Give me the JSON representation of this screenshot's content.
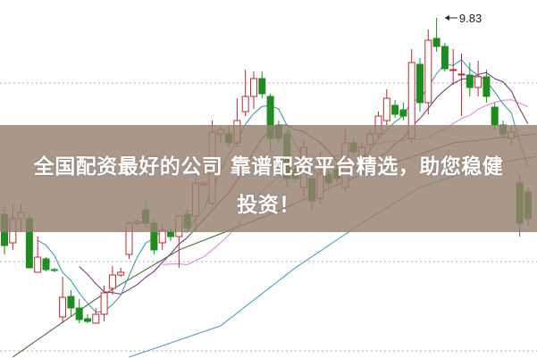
{
  "chart_data": {
    "type": "candlestick",
    "title": "",
    "annotations": [
      {
        "label": "9.83",
        "candle": 53,
        "price": 9.83
      }
    ],
    "gridlines": [
      9.1,
      7.1,
      6.1
    ],
    "grid": "horizontal dotted",
    "colors": {
      "up": "#c0282c",
      "down": "#1e8c1e",
      "ma5": "#3aa0a8",
      "ma10": "#7a3a7a",
      "ma20": "#e088e0",
      "ma60": "#4e6e3e",
      "ma120": "#4aa0c0",
      "grid": "#aaaaaa"
    },
    "candles": [
      [
        7.63,
        7.28,
        7.71,
        7.18
      ],
      [
        7.31,
        7.58,
        7.75,
        7.23
      ],
      [
        7.58,
        7.65,
        7.75,
        7.43
      ],
      [
        7.58,
        7.03,
        7.63,
        7.03
      ],
      [
        6.98,
        7.15,
        7.38,
        6.98
      ],
      [
        7.13,
        7.01,
        7.15,
        6.99
      ],
      [
        7.01,
        7.0,
        7.03,
        6.98
      ],
      [
        6.48,
        6.7,
        6.93,
        6.41
      ],
      [
        6.71,
        6.58,
        6.78,
        6.48
      ],
      [
        6.58,
        6.45,
        6.68,
        6.41
      ],
      [
        6.46,
        6.43,
        6.51,
        6.41
      ],
      [
        6.41,
        6.51,
        6.58,
        6.41
      ],
      [
        6.51,
        6.75,
        6.83,
        6.43
      ],
      [
        6.8,
        6.95,
        7.05,
        6.73
      ],
      [
        6.95,
        6.98,
        7.03,
        6.93
      ],
      [
        7.18,
        7.53,
        7.55,
        7.13
      ],
      [
        7.53,
        7.55,
        7.56,
        7.51
      ],
      [
        7.68,
        7.53,
        7.78,
        7.48
      ],
      [
        7.53,
        7.23,
        7.58,
        7.18
      ],
      [
        7.31,
        7.45,
        7.53,
        7.23
      ],
      [
        7.43,
        7.38,
        7.48,
        7.33
      ],
      [
        7.38,
        7.61,
        7.63,
        7.03
      ],
      [
        7.63,
        7.48,
        7.68,
        7.45
      ],
      [
        7.61,
        7.98,
        8.03,
        7.43
      ],
      [
        7.96,
        7.98,
        7.99,
        7.95
      ],
      [
        7.75,
        8.55,
        8.68,
        7.73
      ],
      [
        8.53,
        8.58,
        8.63,
        8.43
      ],
      [
        8.53,
        8.43,
        8.63,
        8.38
      ],
      [
        8.43,
        8.68,
        8.93,
        8.38
      ],
      [
        8.78,
        8.95,
        9.25,
        8.73
      ],
      [
        8.95,
        9.15,
        9.23,
        8.81
      ],
      [
        9.15,
        8.98,
        9.23,
        8.93
      ],
      [
        8.95,
        8.48,
        8.98,
        8.33
      ],
      [
        8.63,
        8.48,
        8.68,
        8.43
      ],
      [
        8.53,
        8.03,
        8.58,
        7.93
      ],
      [
        8.13,
        8.03,
        8.18,
        7.98
      ],
      [
        7.93,
        8.38,
        8.45,
        7.83
      ],
      [
        8.03,
        7.78,
        8.08,
        7.68
      ],
      [
        7.81,
        8.08,
        8.33,
        7.75
      ],
      [
        8.08,
        7.98,
        8.13,
        7.93
      ],
      [
        8.13,
        8.03,
        8.18,
        7.98
      ],
      [
        7.93,
        8.43,
        8.58,
        7.88
      ],
      [
        8.43,
        8.33,
        8.48,
        8.28
      ],
      [
        8.28,
        8.38,
        8.43,
        8.23
      ],
      [
        8.41,
        8.53,
        8.58,
        8.35
      ],
      [
        8.53,
        8.73,
        8.78,
        8.48
      ],
      [
        8.68,
        8.93,
        9.03,
        8.63
      ],
      [
        8.85,
        8.75,
        8.91,
        8.71
      ],
      [
        8.8,
        8.73,
        8.88,
        8.68
      ],
      [
        8.48,
        9.33,
        9.48,
        8.43
      ],
      [
        9.31,
        8.88,
        9.38,
        8.78
      ],
      [
        8.88,
        9.58,
        9.7,
        8.75
      ],
      [
        9.6,
        9.51,
        9.83,
        9.45
      ],
      [
        9.51,
        9.26,
        9.55,
        9.23
      ],
      [
        9.24,
        9.25,
        9.48,
        9.08
      ],
      [
        9.19,
        9.2,
        9.43,
        8.73
      ],
      [
        9.19,
        9.05,
        9.33,
        8.95
      ],
      [
        9.05,
        9.17,
        9.35,
        8.95
      ],
      [
        9.17,
        8.95,
        9.25,
        8.88
      ],
      [
        8.83,
        8.63,
        8.88,
        8.58
      ],
      [
        8.63,
        8.53,
        8.68,
        8.48
      ],
      [
        8.48,
        8.55,
        8.6,
        8.4
      ],
      [
        7.98,
        7.53,
        8.08,
        7.38
      ],
      [
        7.88,
        7.58,
        7.93,
        7.5
      ]
    ],
    "ma60": [
      [
        1,
        6.03
      ],
      [
        11,
        6.68
      ],
      [
        21,
        7.23
      ],
      [
        32,
        7.63
      ],
      [
        43,
        8.08
      ],
      [
        54,
        8.43
      ],
      [
        64,
        8.53
      ]
    ],
    "ma120": [
      [
        15,
        6.03
      ],
      [
        26,
        6.38
      ],
      [
        35,
        7.03
      ],
      [
        43,
        7.53
      ],
      [
        50,
        7.93
      ],
      [
        58,
        8.18
      ],
      [
        64,
        8.28
      ]
    ]
  },
  "banner": {
    "line1": "全国配资最好的公司 靠谱配资平台精选，助您稳健",
    "line2": "投资！"
  }
}
